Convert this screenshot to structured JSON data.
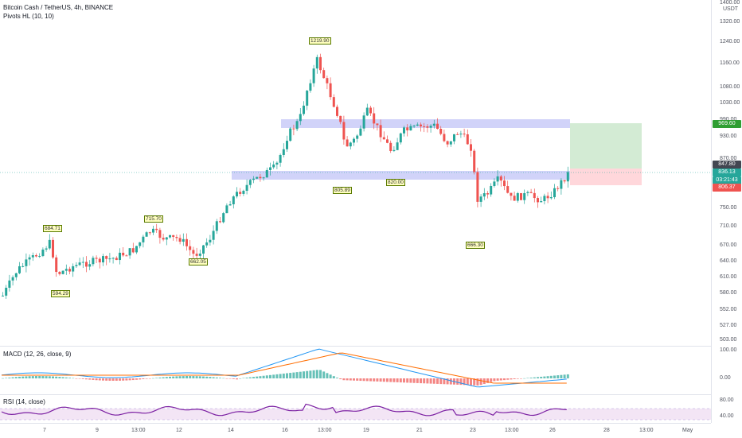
{
  "header": {
    "symbol_title": "Bitcoin Cash / TetherUS, 4h, BINANCE",
    "indicator": "Pivots HL (10, 10)"
  },
  "price_axis": {
    "currency": "USDT",
    "ticks": [
      "1400.00",
      "1320.00",
      "1240.00",
      "1160.00",
      "1080.00",
      "1030.00",
      "990.00",
      "930.00",
      "870.00",
      "750.00",
      "710.00",
      "670.00",
      "640.00",
      "610.00",
      "580.00",
      "552.00",
      "527.00",
      "503.00"
    ],
    "target_tag": "969.60",
    "last_close_tag": "847.80",
    "current_price_tag": "836.13",
    "countdown_tag": "03:21:43",
    "stop_tag": "806.37"
  },
  "pivot_labels": [
    {
      "text": "594.29"
    },
    {
      "text": "684.71"
    },
    {
      "text": "715.70"
    },
    {
      "text": "662.05"
    },
    {
      "text": "1219.90"
    },
    {
      "text": "805.89"
    },
    {
      "text": "820.00"
    },
    {
      "text": "666.30"
    }
  ],
  "macd": {
    "legend": "MACD (12, 26, close, 9)",
    "ticks": [
      "100.00",
      "0.00"
    ]
  },
  "rsi": {
    "legend": "RSI (14, close)",
    "ticks": [
      "80.00",
      "40.00"
    ]
  },
  "time_axis": {
    "labels": [
      "7",
      "9",
      "13:00",
      "12",
      "14",
      "16",
      "13:00",
      "19",
      "21",
      "23",
      "13:00",
      "26",
      "28",
      "13:00",
      "May"
    ]
  },
  "colors": {
    "up": "#26a69a",
    "down": "#ef5350",
    "zone": "#b2b5f5",
    "target_zone": "#c8e6c9",
    "stop_zone": "#ffcdd2",
    "macd_line": "#2196f3",
    "signal_line": "#ff6d00",
    "rsi_line": "#7b1fa2",
    "rsi_band": "#f3e5f5"
  }
}
